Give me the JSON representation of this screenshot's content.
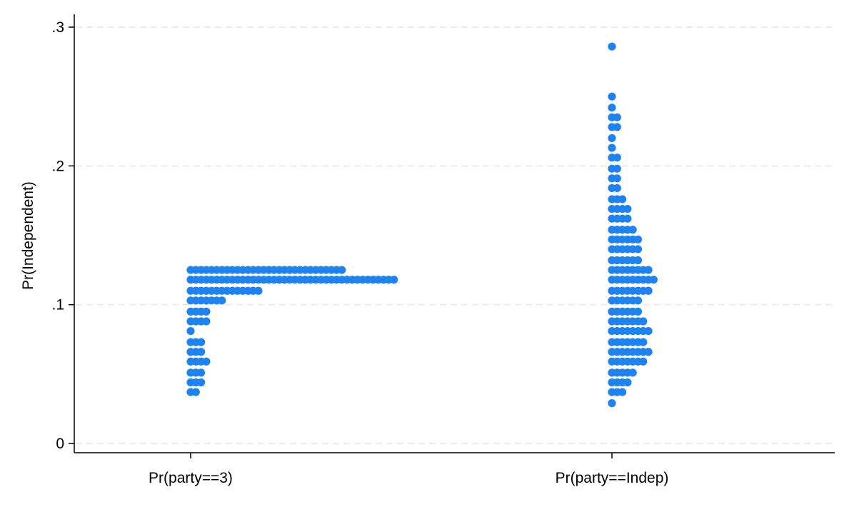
{
  "chart_data": {
    "type": "dotplot",
    "xlabel": "",
    "ylabel": "Pr(Independent)",
    "ylim": [
      0,
      0.3
    ],
    "yticks": [
      {
        "value": 0,
        "label": "0"
      },
      {
        "value": 0.1,
        "label": ".1"
      },
      {
        "value": 0.2,
        "label": ".2"
      },
      {
        "value": 0.3,
        "label": ".3"
      }
    ],
    "grid": "horizontal dashed",
    "marker_color": "#1e82f0",
    "categories": [
      "Pr(party==3)",
      "Pr(party==Indep)"
    ],
    "series": [
      {
        "category": "Pr(party==3)",
        "bins": [
          {
            "y": 0.037,
            "count": 2
          },
          {
            "y": 0.044,
            "count": 3
          },
          {
            "y": 0.051,
            "count": 3
          },
          {
            "y": 0.059,
            "count": 4
          },
          {
            "y": 0.066,
            "count": 3
          },
          {
            "y": 0.073,
            "count": 3
          },
          {
            "y": 0.081,
            "count": 1
          },
          {
            "y": 0.088,
            "count": 4
          },
          {
            "y": 0.095,
            "count": 4
          },
          {
            "y": 0.103,
            "count": 7
          },
          {
            "y": 0.11,
            "count": 14
          },
          {
            "y": 0.118,
            "count": 40
          },
          {
            "y": 0.125,
            "count": 30
          }
        ]
      },
      {
        "category": "Pr(party==Indep)",
        "bins": [
          {
            "y": 0.029,
            "count": 1
          },
          {
            "y": 0.037,
            "count": 3
          },
          {
            "y": 0.044,
            "count": 4
          },
          {
            "y": 0.051,
            "count": 5
          },
          {
            "y": 0.059,
            "count": 7
          },
          {
            "y": 0.066,
            "count": 8
          },
          {
            "y": 0.073,
            "count": 7
          },
          {
            "y": 0.081,
            "count": 8
          },
          {
            "y": 0.088,
            "count": 7
          },
          {
            "y": 0.095,
            "count": 6
          },
          {
            "y": 0.103,
            "count": 6
          },
          {
            "y": 0.11,
            "count": 8
          },
          {
            "y": 0.118,
            "count": 9
          },
          {
            "y": 0.125,
            "count": 8
          },
          {
            "y": 0.132,
            "count": 6
          },
          {
            "y": 0.14,
            "count": 6
          },
          {
            "y": 0.147,
            "count": 6
          },
          {
            "y": 0.154,
            "count": 5
          },
          {
            "y": 0.162,
            "count": 4
          },
          {
            "y": 0.169,
            "count": 4
          },
          {
            "y": 0.176,
            "count": 3
          },
          {
            "y": 0.184,
            "count": 2
          },
          {
            "y": 0.191,
            "count": 2
          },
          {
            "y": 0.198,
            "count": 2
          },
          {
            "y": 0.206,
            "count": 2
          },
          {
            "y": 0.213,
            "count": 1
          },
          {
            "y": 0.22,
            "count": 1
          },
          {
            "y": 0.228,
            "count": 2
          },
          {
            "y": 0.235,
            "count": 2
          },
          {
            "y": 0.242,
            "count": 1
          },
          {
            "y": 0.25,
            "count": 1
          },
          {
            "y": 0.286,
            "count": 1
          }
        ]
      }
    ]
  }
}
